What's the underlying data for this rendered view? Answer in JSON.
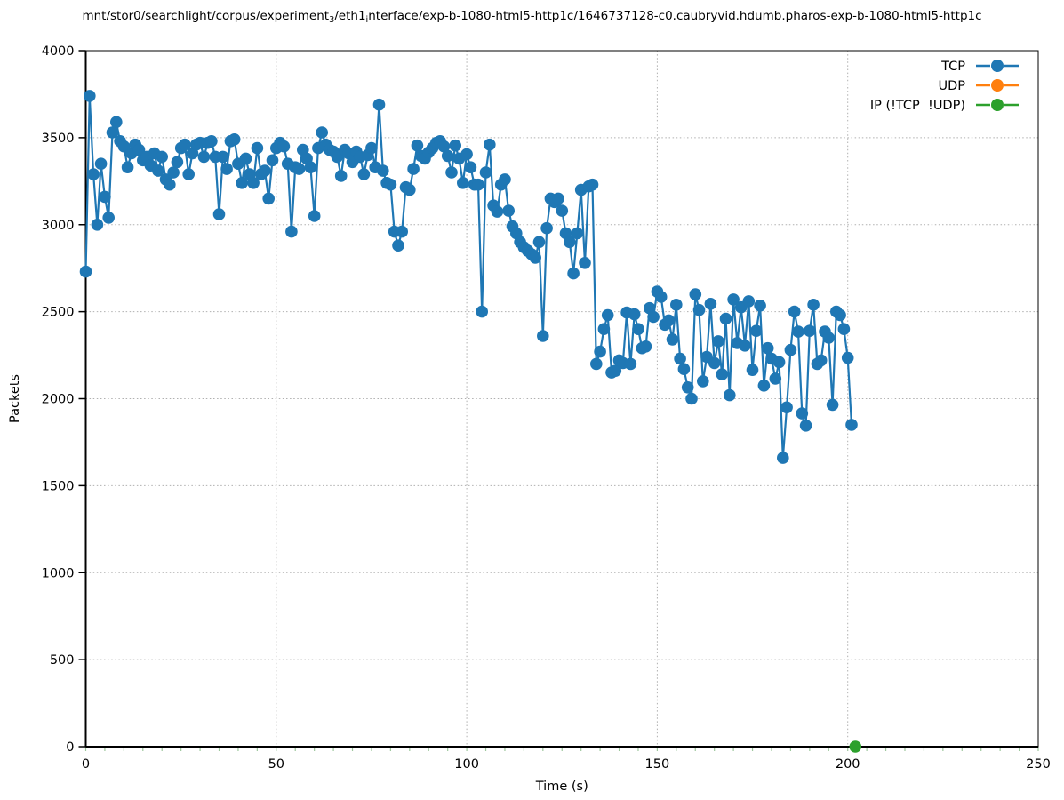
{
  "figure": {
    "title_plain": "mnt/stor0/searchlight/corpus/experiment_3/eth1_interface/exp-b-1080-html5-http1c/1646737128-c0.caubryvid.hdumb.pharos-exp-b-1080-html5-http1c",
    "title_parts": [
      {
        "text": "mnt/stor0/searchlight/corpus/experiment"
      },
      {
        "sub": "3"
      },
      {
        "text": "/eth1"
      },
      {
        "sub": "i"
      },
      {
        "text": "nterface/exp-b-1080-html5-http1c/1646737128-c0.caubryvid.hdumb.pharos-exp-b-1080-html5-http1c"
      }
    ]
  },
  "chart_data": {
    "type": "line",
    "title": "mnt/stor0/searchlight/corpus/experiment_3/eth1_interface/exp-b-1080-html5-http1c/1646737128-c0.caubryvid.hdumb.pharos-exp-b-1080-html5-http1c",
    "xlabel": "Time (s)",
    "ylabel": "Packets",
    "xlim": [
      0,
      250
    ],
    "ylim": [
      0,
      4000
    ],
    "x_ticks": [
      0,
      50,
      100,
      150,
      200,
      250
    ],
    "y_ticks": [
      0,
      500,
      1000,
      1500,
      2000,
      2500,
      3000,
      3500,
      4000
    ],
    "x_minor_step": 5,
    "grid": true,
    "legend_position": "top-right-inside",
    "marker": "filled-circle",
    "series": [
      {
        "name": "TCP",
        "color": "#1f77b4",
        "points": [
          [
            0,
            2730
          ],
          [
            1,
            3740
          ],
          [
            2,
            3290
          ],
          [
            3,
            3000
          ],
          [
            4,
            3350
          ],
          [
            5,
            3160
          ],
          [
            6,
            3040
          ],
          [
            7,
            3530
          ],
          [
            8,
            3590
          ],
          [
            9,
            3480
          ],
          [
            10,
            3450
          ],
          [
            11,
            3330
          ],
          [
            12,
            3410
          ],
          [
            13,
            3460
          ],
          [
            14,
            3430
          ],
          [
            15,
            3370
          ],
          [
            16,
            3390
          ],
          [
            17,
            3340
          ],
          [
            18,
            3410
          ],
          [
            19,
            3310
          ],
          [
            20,
            3390
          ],
          [
            21,
            3260
          ],
          [
            22,
            3230
          ],
          [
            23,
            3300
          ],
          [
            24,
            3360
          ],
          [
            25,
            3440
          ],
          [
            26,
            3460
          ],
          [
            27,
            3290
          ],
          [
            28,
            3410
          ],
          [
            29,
            3460
          ],
          [
            30,
            3470
          ],
          [
            31,
            3390
          ],
          [
            32,
            3470
          ],
          [
            33,
            3480
          ],
          [
            34,
            3390
          ],
          [
            35,
            3060
          ],
          [
            36,
            3390
          ],
          [
            37,
            3320
          ],
          [
            38,
            3480
          ],
          [
            39,
            3490
          ],
          [
            40,
            3350
          ],
          [
            41,
            3240
          ],
          [
            42,
            3380
          ],
          [
            43,
            3290
          ],
          [
            44,
            3240
          ],
          [
            45,
            3440
          ],
          [
            46,
            3290
          ],
          [
            47,
            3310
          ],
          [
            48,
            3150
          ],
          [
            49,
            3370
          ],
          [
            50,
            3440
          ],
          [
            51,
            3470
          ],
          [
            52,
            3450
          ],
          [
            53,
            3350
          ],
          [
            54,
            2960
          ],
          [
            55,
            3330
          ],
          [
            56,
            3320
          ],
          [
            57,
            3430
          ],
          [
            58,
            3380
          ],
          [
            59,
            3330
          ],
          [
            60,
            3050
          ],
          [
            61,
            3440
          ],
          [
            62,
            3530
          ],
          [
            63,
            3460
          ],
          [
            64,
            3430
          ],
          [
            65,
            3420
          ],
          [
            66,
            3390
          ],
          [
            67,
            3280
          ],
          [
            68,
            3430
          ],
          [
            69,
            3410
          ],
          [
            70,
            3360
          ],
          [
            71,
            3420
          ],
          [
            72,
            3390
          ],
          [
            73,
            3290
          ],
          [
            74,
            3400
          ],
          [
            75,
            3440
          ],
          [
            76,
            3330
          ],
          [
            77,
            3690
          ],
          [
            78,
            3310
          ],
          [
            79,
            3240
          ],
          [
            80,
            3230
          ],
          [
            81,
            2960
          ],
          [
            82,
            2880
          ],
          [
            83,
            2960
          ],
          [
            84,
            3215
          ],
          [
            85,
            3200
          ],
          [
            86,
            3320
          ],
          [
            87,
            3455
          ],
          [
            88,
            3395
          ],
          [
            89,
            3380
          ],
          [
            90,
            3415
          ],
          [
            91,
            3440
          ],
          [
            92,
            3470
          ],
          [
            93,
            3480
          ],
          [
            94,
            3450
          ],
          [
            95,
            3395
          ],
          [
            96,
            3300
          ],
          [
            97,
            3455
          ],
          [
            98,
            3380
          ],
          [
            99,
            3240
          ],
          [
            100,
            3405
          ],
          [
            101,
            3330
          ],
          [
            102,
            3230
          ],
          [
            103,
            3230
          ],
          [
            104,
            2500
          ],
          [
            105,
            3300
          ],
          [
            106,
            3460
          ],
          [
            107,
            3110
          ],
          [
            108,
            3075
          ],
          [
            109,
            3230
          ],
          [
            110,
            3260
          ],
          [
            111,
            3080
          ],
          [
            112,
            2990
          ],
          [
            113,
            2950
          ],
          [
            114,
            2900
          ],
          [
            115,
            2870
          ],
          [
            116,
            2850
          ],
          [
            117,
            2830
          ],
          [
            118,
            2810
          ],
          [
            119,
            2900
          ],
          [
            120,
            2360
          ],
          [
            121,
            2980
          ],
          [
            122,
            3150
          ],
          [
            123,
            3130
          ],
          [
            124,
            3150
          ],
          [
            125,
            3080
          ],
          [
            126,
            2950
          ],
          [
            127,
            2900
          ],
          [
            128,
            2720
          ],
          [
            129,
            2950
          ],
          [
            130,
            3200
          ],
          [
            131,
            2780
          ],
          [
            132,
            3220
          ],
          [
            133,
            3230
          ],
          [
            134,
            2200
          ],
          [
            135,
            2270
          ],
          [
            136,
            2400
          ],
          [
            137,
            2480
          ],
          [
            138,
            2150
          ],
          [
            139,
            2160
          ],
          [
            140,
            2220
          ],
          [
            141,
            2205
          ],
          [
            142,
            2495
          ],
          [
            143,
            2200
          ],
          [
            144,
            2485
          ],
          [
            145,
            2400
          ],
          [
            146,
            2290
          ],
          [
            147,
            2300
          ],
          [
            148,
            2520
          ],
          [
            149,
            2470
          ],
          [
            150,
            2615
          ],
          [
            151,
            2585
          ],
          [
            152,
            2425
          ],
          [
            153,
            2450
          ],
          [
            154,
            2340
          ],
          [
            155,
            2540
          ],
          [
            156,
            2230
          ],
          [
            157,
            2170
          ],
          [
            158,
            2065
          ],
          [
            159,
            2000
          ],
          [
            160,
            2600
          ],
          [
            161,
            2510
          ],
          [
            162,
            2100
          ],
          [
            163,
            2240
          ],
          [
            164,
            2545
          ],
          [
            165,
            2205
          ],
          [
            166,
            2330
          ],
          [
            167,
            2140
          ],
          [
            168,
            2460
          ],
          [
            169,
            2020
          ],
          [
            170,
            2570
          ],
          [
            171,
            2320
          ],
          [
            172,
            2525
          ],
          [
            173,
            2305
          ],
          [
            174,
            2560
          ],
          [
            175,
            2165
          ],
          [
            176,
            2390
          ],
          [
            177,
            2535
          ],
          [
            178,
            2075
          ],
          [
            179,
            2290
          ],
          [
            180,
            2230
          ],
          [
            181,
            2115
          ],
          [
            182,
            2210
          ],
          [
            183,
            1660
          ],
          [
            184,
            1950
          ],
          [
            185,
            2280
          ],
          [
            186,
            2500
          ],
          [
            187,
            2385
          ],
          [
            188,
            1915
          ],
          [
            189,
            1845
          ],
          [
            190,
            2390
          ],
          [
            191,
            2540
          ],
          [
            192,
            2200
          ],
          [
            193,
            2220
          ],
          [
            194,
            2385
          ],
          [
            195,
            2350
          ],
          [
            196,
            1965
          ],
          [
            197,
            2500
          ],
          [
            198,
            2480
          ],
          [
            199,
            2400
          ],
          [
            200,
            2235
          ],
          [
            201,
            1850
          ]
        ]
      },
      {
        "name": "UDP",
        "color": "#ff7f0e",
        "points": []
      },
      {
        "name": "IP (!TCP  !UDP)",
        "color": "#2ca02c",
        "points": [
          [
            202,
            0
          ]
        ]
      }
    ]
  },
  "colors": {
    "grid": "#b0b0b0",
    "axis": "#000000",
    "x_tick": "#9ec89e",
    "background": "#ffffff"
  }
}
